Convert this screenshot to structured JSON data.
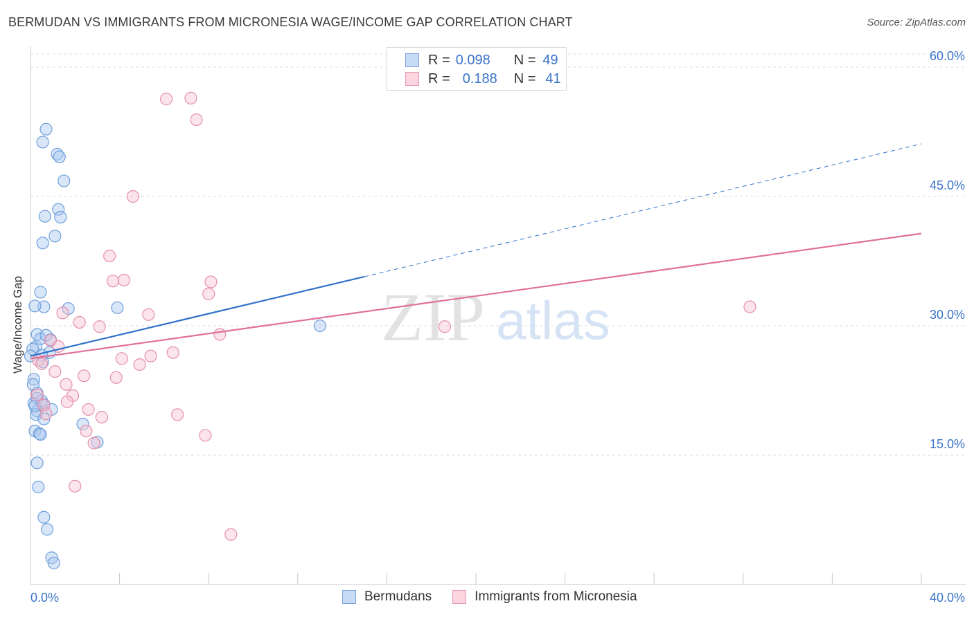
{
  "header": {
    "title": "BERMUDAN VS IMMIGRANTS FROM MICRONESIA WAGE/INCOME GAP CORRELATION CHART",
    "source": "Source: ZipAtlas.com"
  },
  "legend": {
    "rows": [
      {
        "r_label": "R =",
        "r_value": "0.098",
        "n_label": "N =",
        "n_value": "49",
        "color": "#a9c8f0",
        "border": "#7aa5dd"
      },
      {
        "r_label": "R =",
        "r_value": "0.188",
        "n_label": "N =",
        "n_value": "41",
        "color": "#f7c4d3",
        "border": "#e695ae"
      }
    ],
    "bottom": [
      "Bermudans",
      "Immigrants from Micronesia"
    ]
  },
  "watermark": {
    "zip": "ZIP",
    "atlas": "atlas"
  },
  "chart_data": {
    "type": "scatter",
    "title": "BERMUDAN VS IMMIGRANTS FROM MICRONESIA WAGE/INCOME GAP CORRELATION CHART",
    "xlabel": "",
    "ylabel": "Wage/Income Gap",
    "xlim": [
      0,
      40
    ],
    "ylim": [
      0,
      62
    ],
    "x_tick_labels": [
      {
        "value": 0,
        "label": "0.0%"
      },
      {
        "value": 40,
        "label": "40.0%"
      }
    ],
    "y_tick_labels": [
      {
        "value": 15,
        "label": "15.0%"
      },
      {
        "value": 30,
        "label": "30.0%"
      },
      {
        "value": 45,
        "label": "45.0%"
      },
      {
        "value": 60,
        "label": "60.0%"
      }
    ],
    "series": [
      {
        "name": "Bermudans",
        "color": "#a9c8f0",
        "stroke": "#6f9fdc",
        "line_color": "#2f72c8",
        "trend": {
          "x0": 0.0,
          "y0": 26.5,
          "x1": 15.0,
          "y1": 35.7,
          "dash_to_x": 40.0,
          "dash_to_y": 51.1
        },
        "points": [
          [
            0.7,
            52.8
          ],
          [
            0.55,
            51.3
          ],
          [
            1.2,
            49.9
          ],
          [
            1.3,
            49.6
          ],
          [
            1.5,
            46.8
          ],
          [
            1.25,
            43.5
          ],
          [
            0.65,
            42.7
          ],
          [
            1.35,
            42.6
          ],
          [
            1.1,
            40.4
          ],
          [
            0.55,
            39.6
          ],
          [
            0.45,
            33.9
          ],
          [
            0.6,
            32.2
          ],
          [
            0.2,
            32.3
          ],
          [
            1.7,
            32.0
          ],
          [
            3.9,
            32.1
          ],
          [
            13.0,
            30.0
          ],
          [
            0.3,
            29.0
          ],
          [
            0.25,
            27.6
          ],
          [
            0.1,
            27.3
          ],
          [
            0.9,
            28.4
          ],
          [
            0.85,
            26.9
          ],
          [
            0.5,
            26.6
          ],
          [
            0.55,
            25.8
          ],
          [
            0.15,
            23.8
          ],
          [
            0.3,
            22.2
          ],
          [
            0.12,
            23.2
          ],
          [
            0.3,
            21.6
          ],
          [
            0.15,
            21.0
          ],
          [
            0.6,
            20.9
          ],
          [
            0.95,
            20.3
          ],
          [
            0.3,
            20.1
          ],
          [
            0.25,
            19.7
          ],
          [
            0.6,
            19.2
          ],
          [
            2.35,
            18.6
          ],
          [
            0.2,
            17.8
          ],
          [
            0.4,
            17.5
          ],
          [
            0.45,
            17.4
          ],
          [
            3.0,
            16.5
          ],
          [
            0.3,
            14.1
          ],
          [
            0.35,
            11.3
          ],
          [
            0.6,
            7.8
          ],
          [
            0.75,
            6.4
          ],
          [
            0.95,
            3.1
          ],
          [
            1.05,
            2.5
          ],
          [
            0.45,
            28.5
          ],
          [
            0.0,
            26.5
          ],
          [
            0.7,
            28.9
          ],
          [
            0.2,
            20.7
          ],
          [
            0.5,
            21.3
          ]
        ]
      },
      {
        "name": "Immigrants from Micronesia",
        "color": "#f7c4d3",
        "stroke": "#e58fab",
        "line_color": "#e0709a",
        "trend": {
          "x0": 0.0,
          "y0": 26.2,
          "x1": 40.0,
          "y1": 40.7
        },
        "points": [
          [
            6.1,
            56.3
          ],
          [
            7.2,
            56.4
          ],
          [
            7.45,
            53.9
          ],
          [
            4.6,
            45.0
          ],
          [
            3.55,
            38.1
          ],
          [
            3.7,
            35.2
          ],
          [
            4.2,
            35.3
          ],
          [
            8.1,
            35.1
          ],
          [
            8.0,
            33.7
          ],
          [
            5.3,
            31.3
          ],
          [
            1.45,
            31.5
          ],
          [
            2.2,
            30.4
          ],
          [
            3.1,
            29.9
          ],
          [
            18.6,
            29.9
          ],
          [
            8.5,
            29.0
          ],
          [
            32.3,
            32.2
          ],
          [
            0.9,
            28.3
          ],
          [
            1.25,
            27.6
          ],
          [
            6.4,
            26.9
          ],
          [
            5.4,
            26.5
          ],
          [
            4.1,
            26.2
          ],
          [
            0.35,
            26.0
          ],
          [
            0.5,
            25.6
          ],
          [
            4.9,
            25.5
          ],
          [
            1.1,
            24.7
          ],
          [
            2.4,
            24.2
          ],
          [
            3.85,
            24.0
          ],
          [
            1.6,
            23.2
          ],
          [
            0.3,
            22.0
          ],
          [
            1.9,
            21.9
          ],
          [
            1.65,
            21.2
          ],
          [
            0.6,
            20.8
          ],
          [
            2.6,
            20.3
          ],
          [
            0.7,
            19.8
          ],
          [
            6.6,
            19.7
          ],
          [
            3.2,
            19.4
          ],
          [
            2.5,
            17.8
          ],
          [
            7.85,
            17.3
          ],
          [
            2.85,
            16.4
          ],
          [
            2.0,
            11.4
          ],
          [
            9.0,
            5.8
          ]
        ]
      }
    ]
  }
}
